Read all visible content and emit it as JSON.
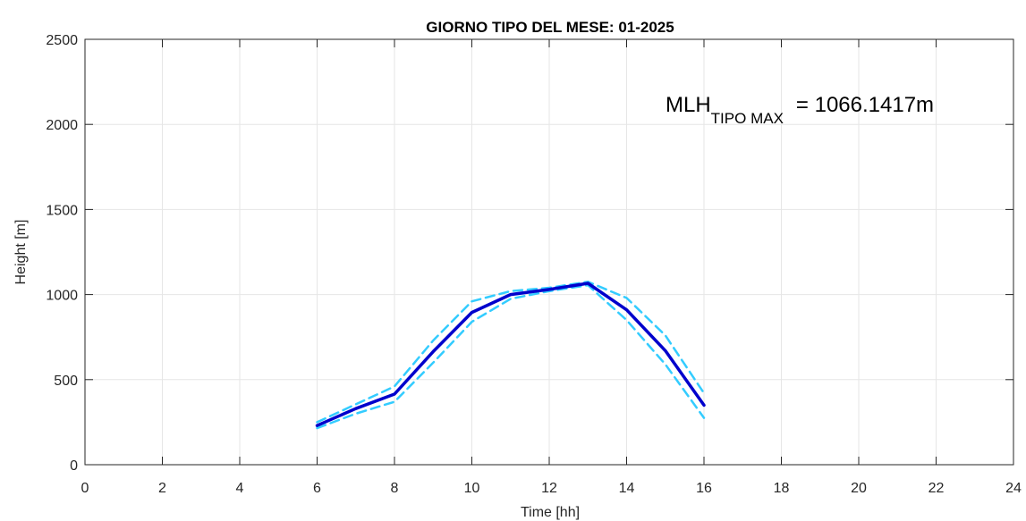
{
  "chart_data": {
    "type": "line",
    "title": "GIORNO TIPO DEL MESE:  01-2025",
    "xlabel": "Time [hh]",
    "ylabel": "Height [m]",
    "xlim": [
      0,
      24
    ],
    "ylim": [
      0,
      2500
    ],
    "xticks": [
      0,
      2,
      4,
      6,
      8,
      10,
      12,
      14,
      16,
      18,
      20,
      22,
      24
    ],
    "yticks": [
      0,
      500,
      1000,
      1500,
      2000,
      2500
    ],
    "grid": true,
    "annotation": {
      "main": "MLH",
      "subscript": "TIPO MAX",
      "value": "= 1066.1417m"
    },
    "series": [
      {
        "color": "#0000cc",
        "style": "solid",
        "x": [
          6,
          7,
          8,
          9,
          10,
          11,
          12,
          13,
          14,
          15,
          16
        ],
        "y": [
          230,
          330,
          415,
          665,
          895,
          1000,
          1030,
          1066,
          910,
          670,
          350
        ]
      },
      {
        "color": "#33ccff",
        "style": "dashed",
        "x": [
          6,
          7,
          8,
          9,
          10,
          11,
          12,
          13,
          14,
          15,
          16
        ],
        "y": [
          250,
          355,
          460,
          730,
          960,
          1020,
          1040,
          1075,
          980,
          760,
          420
        ]
      },
      {
        "color": "#33ccff",
        "style": "dashed",
        "x": [
          6,
          7,
          8,
          9,
          10,
          11,
          12,
          13,
          14,
          15,
          16
        ],
        "y": [
          215,
          300,
          370,
          600,
          840,
          975,
          1020,
          1055,
          850,
          590,
          275
        ]
      }
    ]
  }
}
